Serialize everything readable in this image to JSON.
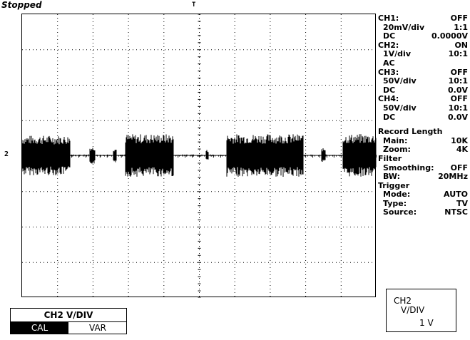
{
  "status": "Stopped",
  "trigger_marker": "T",
  "channel_marker": "2",
  "sidebar": {
    "rows": [
      {
        "k": "CH1:",
        "v": "OFF",
        "sub": false
      },
      {
        "k": "20mV/div",
        "v": "1:1",
        "sub": true
      },
      {
        "k": "DC",
        "v": "0.0000V",
        "sub": true
      },
      {
        "k": "CH2:",
        "v": "ON",
        "sub": false
      },
      {
        "k": "1V/div",
        "v": "10:1",
        "sub": true
      },
      {
        "k": "AC",
        "v": "",
        "sub": true
      },
      {
        "k": "CH3:",
        "v": "OFF",
        "sub": false
      },
      {
        "k": "50V/div",
        "v": "10:1",
        "sub": true
      },
      {
        "k": "DC",
        "v": "0.0V",
        "sub": true
      },
      {
        "k": "CH4:",
        "v": "OFF",
        "sub": false
      },
      {
        "k": "50V/div",
        "v": "10:1",
        "sub": true
      },
      {
        "k": "DC",
        "v": "0.0V",
        "sub": true
      },
      {
        "k": "",
        "v": "",
        "spacer": true
      },
      {
        "k": "Record Length",
        "v": "",
        "sub": false
      },
      {
        "k": "Main:",
        "v": "10K",
        "sub": true
      },
      {
        "k": "Zoom:",
        "v": "4K",
        "sub": true
      },
      {
        "k": "Filter",
        "v": "",
        "sub": false
      },
      {
        "k": "Smoothing:",
        "v": "OFF",
        "sub": true
      },
      {
        "k": "BW:",
        "v": "20MHz",
        "sub": true
      },
      {
        "k": "Trigger",
        "v": "",
        "sub": false
      },
      {
        "k": "Mode:",
        "v": "AUTO",
        "sub": true
      },
      {
        "k": "Type:",
        "v": "TV",
        "sub": true
      },
      {
        "k": "Source:",
        "v": "NTSC",
        "sub": true
      }
    ]
  },
  "readout": {
    "line1": "CH2",
    "line2": "V/DIV",
    "line3": "1  V"
  },
  "menu": {
    "title": "CH2  V/DIV",
    "options": [
      "CAL",
      "VAR"
    ],
    "selected": "CAL"
  }
}
